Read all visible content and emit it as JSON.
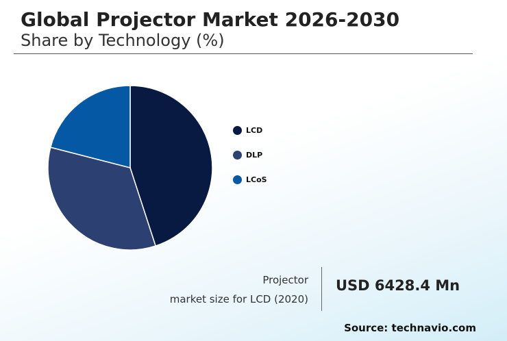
{
  "header": {
    "title": "Global Projector Market 2026-2030",
    "subtitle": "Share by Technology (%)"
  },
  "chart_data": {
    "type": "pie",
    "categories": [
      "LCD",
      "DLP",
      "LCoS"
    ],
    "values": [
      45,
      34,
      21
    ],
    "colors": [
      "#091a42",
      "#2c4172",
      "#0558a4"
    ],
    "legend_position": "right"
  },
  "footer": {
    "caption_line1": "Projector",
    "caption_line2": "market size for LCD (2020)",
    "value": "USD 6428.4 Mn",
    "source": "Source: technavio.com"
  }
}
